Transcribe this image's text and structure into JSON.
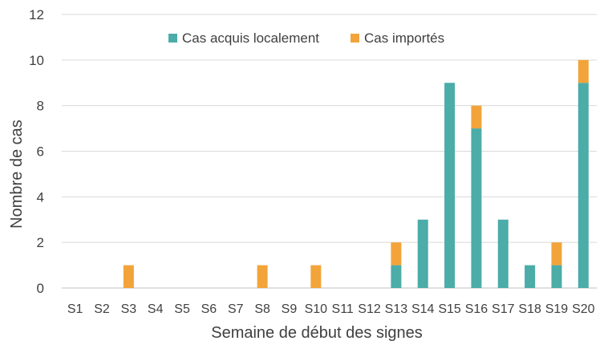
{
  "chart_data": {
    "type": "bar",
    "stacked": true,
    "title": "",
    "xlabel": "Semaine de début des signes",
    "ylabel": "Nombre de cas",
    "ylim": [
      0,
      12
    ],
    "yticks": [
      0,
      2,
      4,
      6,
      8,
      10,
      12
    ],
    "grid": true,
    "legend_position": "top-center",
    "categories": [
      "S1",
      "S2",
      "S3",
      "S4",
      "S5",
      "S6",
      "S7",
      "S8",
      "S9",
      "S10",
      "S11",
      "S12",
      "S13",
      "S14",
      "S15",
      "S16",
      "S17",
      "S18",
      "S19",
      "S20"
    ],
    "series": [
      {
        "name": "Cas acquis localement",
        "color": "#4BACA8",
        "values": [
          0,
          0,
          0,
          0,
          0,
          0,
          0,
          0,
          0,
          0,
          0,
          0,
          1,
          3,
          9,
          7,
          3,
          1,
          1,
          9
        ]
      },
      {
        "name": "Cas importés",
        "color": "#F2A43A",
        "values": [
          0,
          0,
          1,
          0,
          0,
          0,
          0,
          1,
          0,
          1,
          0,
          0,
          1,
          0,
          0,
          1,
          0,
          0,
          1,
          1
        ]
      }
    ]
  }
}
